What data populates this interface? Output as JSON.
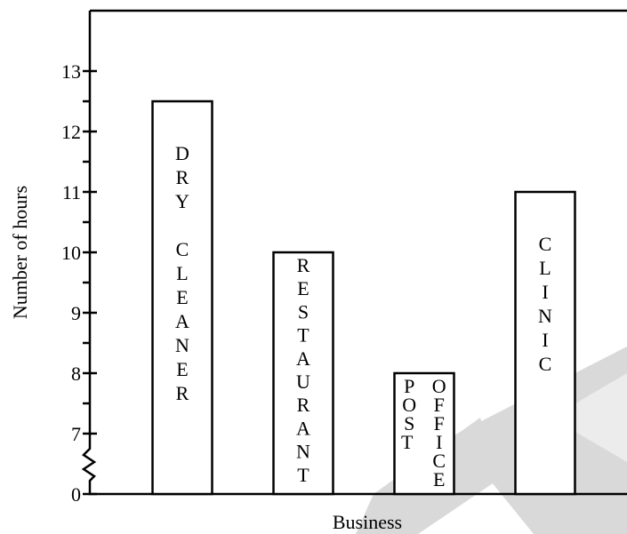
{
  "chart_data": {
    "type": "bar",
    "x_label": "Business",
    "y_label": "Number of hours",
    "categories": [
      "DRY CLEANER",
      "RESTAURANT",
      "POST OFFICE",
      "CLINIC"
    ],
    "values": [
      12.5,
      10,
      8,
      11
    ],
    "color": "#ffffff",
    "ylim": [
      0,
      14
    ],
    "y_break": [
      0,
      6
    ],
    "yticks": [
      0,
      7,
      8,
      9,
      10,
      11,
      12,
      13
    ],
    "yminor_ticks": [
      7.5,
      8.5,
      9.5,
      10.5,
      11.5,
      12.5
    ],
    "grid": false
  }
}
